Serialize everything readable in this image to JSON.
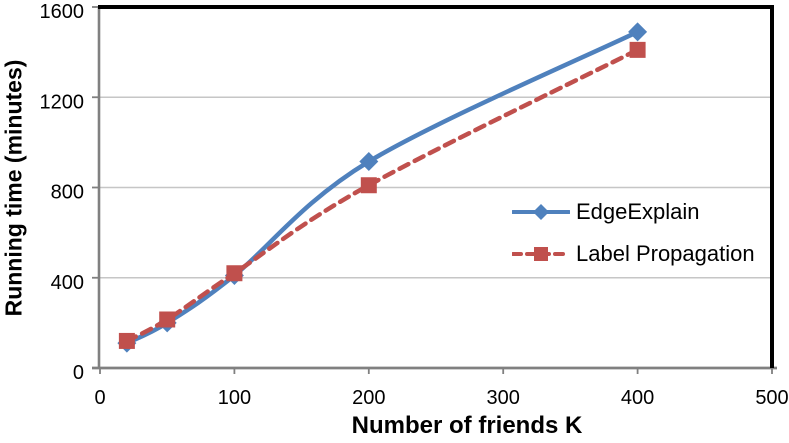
{
  "chart_data": {
    "type": "line",
    "title": "",
    "xlabel": "Number of friends K",
    "ylabel": "Running time (minutes)",
    "xlim": [
      0,
      500
    ],
    "ylim": [
      0,
      1600
    ],
    "x_ticks": [
      0,
      100,
      200,
      300,
      400,
      500
    ],
    "y_ticks": [
      0,
      400,
      800,
      1200,
      1600
    ],
    "grid": "horizontal-only",
    "legend_position": "center-right-inside",
    "x": [
      20,
      50,
      100,
      200,
      400
    ],
    "series": [
      {
        "name": "EdgeExplain",
        "values": [
          110,
          200,
          410,
          915,
          1490
        ],
        "color": "#4F81BD",
        "marker": "diamond",
        "line_style": "solid"
      },
      {
        "name": "Label Propagation",
        "values": [
          120,
          215,
          420,
          810,
          1410
        ],
        "color": "#C0504D",
        "marker": "square",
        "line_style": "dashed"
      }
    ],
    "colors": {
      "axis": "#808080",
      "gridline": "#C6C6C6",
      "plot_border": "#000000",
      "text": "#000000",
      "background": "#FFFFFF"
    }
  }
}
